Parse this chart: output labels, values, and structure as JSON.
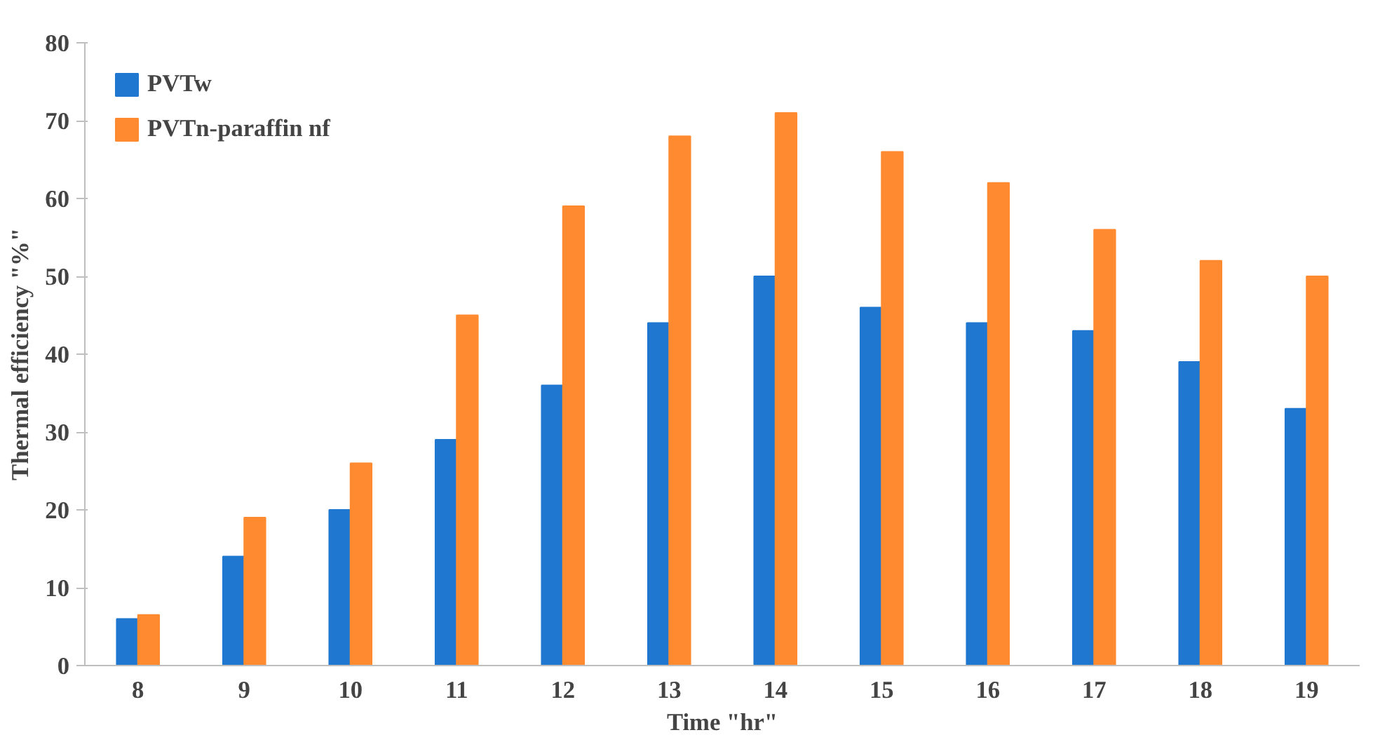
{
  "chart_data": {
    "type": "bar",
    "xlabel": "Time \"hr\"",
    "ylabel": "Thermal efficiency \"%\"",
    "categories": [
      "8",
      "9",
      "10",
      "11",
      "12",
      "13",
      "14",
      "15",
      "16",
      "17",
      "18",
      "19"
    ],
    "series": [
      {
        "name": "PVTw",
        "color": "#1f77d0",
        "values": [
          6,
          14,
          20,
          29,
          36,
          44,
          50,
          46,
          44,
          43,
          39,
          33
        ]
      },
      {
        "name": "PVTn-paraffin nf",
        "color": "#ff8a30",
        "values": [
          6.5,
          19,
          26,
          45,
          59,
          68,
          71,
          66,
          62,
          56,
          52,
          50
        ]
      }
    ],
    "ylim": [
      0,
      80
    ],
    "yticks": [
      0,
      10,
      20,
      30,
      40,
      50,
      60,
      70,
      80
    ],
    "grid": false,
    "legend": "top left"
  }
}
